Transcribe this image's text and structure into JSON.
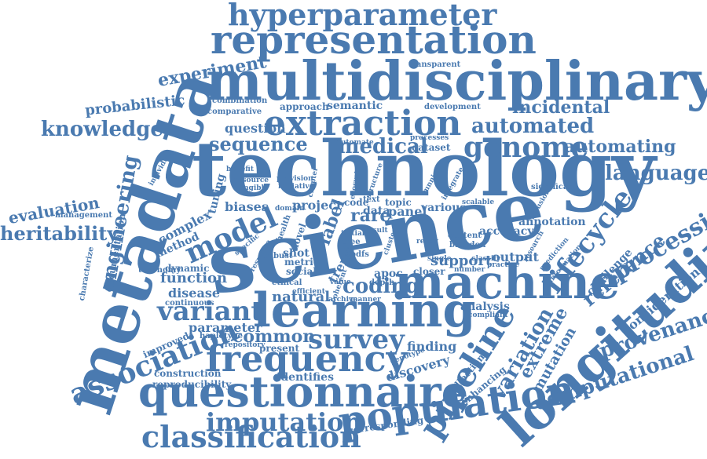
{
  "cloud": {
    "color": "#4a7ab0",
    "words": {
      "science": "science",
      "technology": "technology",
      "multidisciplinary": "multidisciplinary",
      "metadata": "metadata",
      "representation": "representation",
      "hyperparameter": "hyperparameter",
      "machine": "machine",
      "learning": "learning",
      "longitudinal": "longitudinal",
      "questionnaire": "questionnaire",
      "population": "population",
      "frequency": "frequency",
      "classification": "classification",
      "extraction": "extraction",
      "pipeline": "pipeline",
      "association": "association",
      "genome": "genome",
      "automated": "automated",
      "automating": "automating",
      "language": "language",
      "knowledge": "knowledge",
      "incidental": "incidental",
      "medical": "medical",
      "sequence": "sequence",
      "engineering": "engineering",
      "experiment": "experiment",
      "probabilistic": "probabilistic",
      "heritability": "heritability",
      "evaluation": "evaluation",
      "model": "model",
      "variant": "variant",
      "survey": "survey",
      "imputation": "imputation",
      "computational": "computational",
      "provenance": "provenance",
      "processing": "processing",
      "lifecycle": "lifecycle",
      "reference": "reference",
      "variation": "variation",
      "extreme": "extreme",
      "mutation": "mutation",
      "coding": "coding",
      "common": "common",
      "parameter": "parameter",
      "function": "function",
      "disease": "disease",
      "support": "support",
      "natural": "natural",
      "rare": "rare",
      "label": "label",
      "finding": "finding",
      "discovery": "discovery",
      "identifies": "identifies",
      "construction": "construction",
      "reproducibility": "reproducibility",
      "improved": "improved",
      "annotation": "annotation",
      "accuracy": "accuracy",
      "output": "output",
      "analysis": "analysis",
      "consideration": "consideration",
      "challenge": "challenge",
      "collection": "collection",
      "enhancing": "enhancing",
      "corresponding": "corresponding",
      "question": "question",
      "coherent": "coherent",
      "approach": "approach",
      "semantic": "semantic",
      "development": "development",
      "transparent": "transparent",
      "dataset": "dataset",
      "comparative": "comparative",
      "combination": "combination",
      "biases": "biases",
      "project": "project",
      "complex": "complex",
      "tuning": "tuning",
      "panel": "panel",
      "data": "data",
      "topic": "topic",
      "various": "various",
      "shot": "shot",
      "dynamic": "dynamic",
      "method": "method",
      "documentation": "documentation",
      "management": "management",
      "taxonomy": "taxonomy",
      "characterize": "characterize",
      "continuous": "continuous",
      "haplotype": "haplotype",
      "present": "present",
      "ethical": "ethical",
      "social": "social",
      "metric": "metric",
      "apoc": "apoc",
      "closer": "closer",
      "depth": "depth",
      "content": "content",
      "basedon": "basedon",
      "text": "text",
      "code": "code",
      "robust": "robust",
      "resource": "resource",
      "provision": "provision",
      "initiative": "initiative",
      "ecosystem": "ecosystem",
      "structure": "structure",
      "automate": "automate",
      "processes": "processes",
      "scalable": "scalable",
      "integrate": "integrate",
      "significant": "significant",
      "individual": "individual",
      "tangible": "tangible",
      "compliant": "compliant",
      "practice": "practice",
      "number": "number",
      "prediction": "prediction",
      "information": "information",
      "genotype": "genotype",
      "repository": "repository",
      "efficient": "efficient",
      "value": "value",
      "archive": "archive",
      "manner": "manner",
      "trend": "trend",
      "tree": "tree",
      "pdfs": "pdfs",
      "item": "item",
      "novel": "novel",
      "health": "health",
      "domain": "domain",
      "specific": "specific",
      "response": "response",
      "result": "result",
      "initial": "initial",
      "cluster": "cluster",
      "research": "research",
      "inclusion": "inclusion",
      "classify": "classify",
      "single": "single",
      "ready": "ready",
      "running": "running",
      "chapter": "chapter",
      "benefit": "benefit",
      "bioinformatics": "bioinformatics",
      "biology": "biology"
    }
  }
}
